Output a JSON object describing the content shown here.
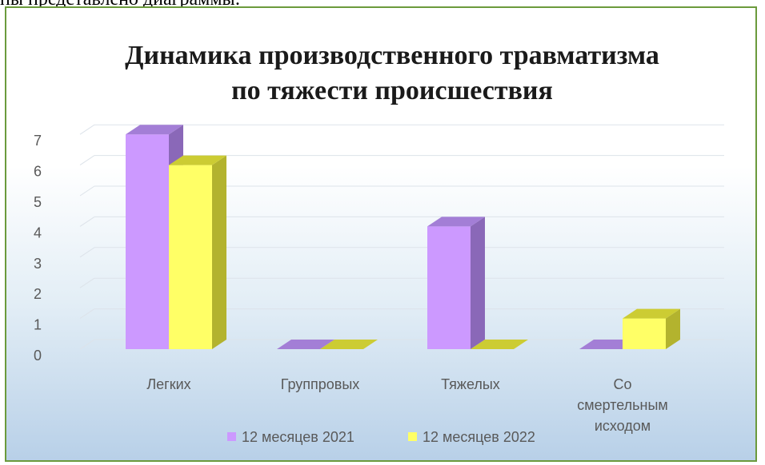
{
  "page": {
    "clipped_text": "пы представлено диаграммы:"
  },
  "chart_data": {
    "type": "bar",
    "title": "Динамика производственного травматизма по тяжести происшествия",
    "title_lines": [
      "Динамика производственного травматизма",
      "по тяжести происшествия"
    ],
    "categories": [
      "Легких",
      "Группровых",
      "Тяжелых",
      "Со смертельным исходом"
    ],
    "category_lines": [
      [
        "Легких"
      ],
      [
        "Группровых"
      ],
      [
        "Тяжелых"
      ],
      [
        "Со",
        "смертельным",
        "исходом"
      ]
    ],
    "series": [
      {
        "name": "12 месяцев 2021",
        "values": [
          7,
          0,
          4,
          0
        ],
        "color": "#cc99ff",
        "side": "#8a68b8",
        "top": "#a37ed6"
      },
      {
        "name": "12 месяцев 2022",
        "values": [
          6,
          0,
          0,
          1
        ],
        "color": "#ffff66",
        "side": "#b3b32e",
        "top": "#cccc33"
      }
    ],
    "ylim": [
      0,
      7
    ],
    "yticks": [
      "0",
      "1",
      "2",
      "3",
      "4",
      "5",
      "6",
      "7"
    ],
    "grid": true,
    "legend_position": "bottom",
    "projection": "3d"
  }
}
